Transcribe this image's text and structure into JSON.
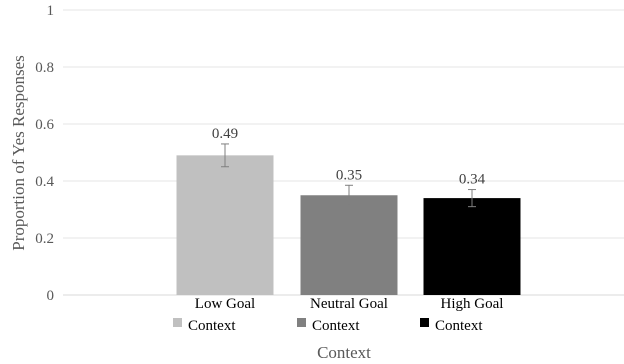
{
  "chart_data": {
    "type": "bar",
    "categories": [
      {
        "line1": "Low Goal",
        "line2": "Context"
      },
      {
        "line1": "Neutral Goal",
        "line2": "Context"
      },
      {
        "line1": "High Goal",
        "line2": "Context"
      }
    ],
    "values": [
      0.49,
      0.35,
      0.34
    ],
    "value_labels": [
      "0.49",
      "0.35",
      "0.34"
    ],
    "error": [
      0.04,
      0.035,
      0.03
    ],
    "colors": [
      "#c0c0c0",
      "#808080",
      "#000000"
    ],
    "ylabel": "Proportion of Yes Responses",
    "xlabel": "Context",
    "ylim": [
      0,
      1
    ],
    "yticks": [
      0,
      0.2,
      0.4,
      0.6,
      0.8,
      1
    ],
    "ytick_labels": [
      "0",
      "0.2",
      "0.4",
      "0.6",
      "0.8",
      "1"
    ],
    "grid": true,
    "legend": "inline under categories"
  }
}
